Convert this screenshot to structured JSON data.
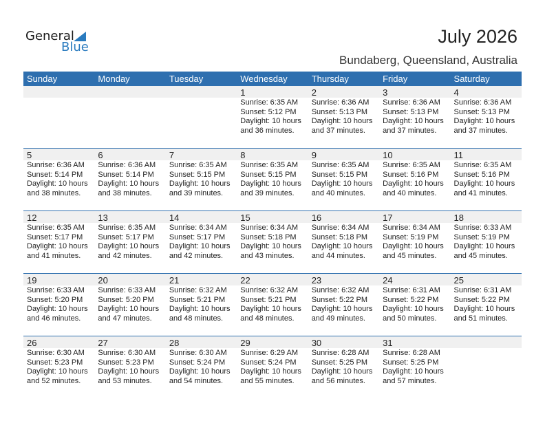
{
  "logo": {
    "text_general": "General",
    "text_blue": "Blue"
  },
  "header": {
    "title": "July 2026",
    "location": "Bundaberg, Queensland, Australia"
  },
  "colors": {
    "accent": "#2e6faf",
    "band": "#f0f0f0"
  },
  "weekdays": [
    "Sunday",
    "Monday",
    "Tuesday",
    "Wednesday",
    "Thursday",
    "Friday",
    "Saturday"
  ],
  "weeks": [
    [
      null,
      null,
      null,
      {
        "day": "1",
        "sunrise": "Sunrise: 6:35 AM",
        "sunset": "Sunset: 5:12 PM",
        "daylight": "Daylight: 10 hours",
        "minutes": "and 36 minutes."
      },
      {
        "day": "2",
        "sunrise": "Sunrise: 6:36 AM",
        "sunset": "Sunset: 5:13 PM",
        "daylight": "Daylight: 10 hours",
        "minutes": "and 37 minutes."
      },
      {
        "day": "3",
        "sunrise": "Sunrise: 6:36 AM",
        "sunset": "Sunset: 5:13 PM",
        "daylight": "Daylight: 10 hours",
        "minutes": "and 37 minutes."
      },
      {
        "day": "4",
        "sunrise": "Sunrise: 6:36 AM",
        "sunset": "Sunset: 5:13 PM",
        "daylight": "Daylight: 10 hours",
        "minutes": "and 37 minutes."
      }
    ],
    [
      {
        "day": "5",
        "sunrise": "Sunrise: 6:36 AM",
        "sunset": "Sunset: 5:14 PM",
        "daylight": "Daylight: 10 hours",
        "minutes": "and 38 minutes."
      },
      {
        "day": "6",
        "sunrise": "Sunrise: 6:36 AM",
        "sunset": "Sunset: 5:14 PM",
        "daylight": "Daylight: 10 hours",
        "minutes": "and 38 minutes."
      },
      {
        "day": "7",
        "sunrise": "Sunrise: 6:35 AM",
        "sunset": "Sunset: 5:15 PM",
        "daylight": "Daylight: 10 hours",
        "minutes": "and 39 minutes."
      },
      {
        "day": "8",
        "sunrise": "Sunrise: 6:35 AM",
        "sunset": "Sunset: 5:15 PM",
        "daylight": "Daylight: 10 hours",
        "minutes": "and 39 minutes."
      },
      {
        "day": "9",
        "sunrise": "Sunrise: 6:35 AM",
        "sunset": "Sunset: 5:15 PM",
        "daylight": "Daylight: 10 hours",
        "minutes": "and 40 minutes."
      },
      {
        "day": "10",
        "sunrise": "Sunrise: 6:35 AM",
        "sunset": "Sunset: 5:16 PM",
        "daylight": "Daylight: 10 hours",
        "minutes": "and 40 minutes."
      },
      {
        "day": "11",
        "sunrise": "Sunrise: 6:35 AM",
        "sunset": "Sunset: 5:16 PM",
        "daylight": "Daylight: 10 hours",
        "minutes": "and 41 minutes."
      }
    ],
    [
      {
        "day": "12",
        "sunrise": "Sunrise: 6:35 AM",
        "sunset": "Sunset: 5:17 PM",
        "daylight": "Daylight: 10 hours",
        "minutes": "and 41 minutes."
      },
      {
        "day": "13",
        "sunrise": "Sunrise: 6:35 AM",
        "sunset": "Sunset: 5:17 PM",
        "daylight": "Daylight: 10 hours",
        "minutes": "and 42 minutes."
      },
      {
        "day": "14",
        "sunrise": "Sunrise: 6:34 AM",
        "sunset": "Sunset: 5:17 PM",
        "daylight": "Daylight: 10 hours",
        "minutes": "and 42 minutes."
      },
      {
        "day": "15",
        "sunrise": "Sunrise: 6:34 AM",
        "sunset": "Sunset: 5:18 PM",
        "daylight": "Daylight: 10 hours",
        "minutes": "and 43 minutes."
      },
      {
        "day": "16",
        "sunrise": "Sunrise: 6:34 AM",
        "sunset": "Sunset: 5:18 PM",
        "daylight": "Daylight: 10 hours",
        "minutes": "and 44 minutes."
      },
      {
        "day": "17",
        "sunrise": "Sunrise: 6:34 AM",
        "sunset": "Sunset: 5:19 PM",
        "daylight": "Daylight: 10 hours",
        "minutes": "and 45 minutes."
      },
      {
        "day": "18",
        "sunrise": "Sunrise: 6:33 AM",
        "sunset": "Sunset: 5:19 PM",
        "daylight": "Daylight: 10 hours",
        "minutes": "and 45 minutes."
      }
    ],
    [
      {
        "day": "19",
        "sunrise": "Sunrise: 6:33 AM",
        "sunset": "Sunset: 5:20 PM",
        "daylight": "Daylight: 10 hours",
        "minutes": "and 46 minutes."
      },
      {
        "day": "20",
        "sunrise": "Sunrise: 6:33 AM",
        "sunset": "Sunset: 5:20 PM",
        "daylight": "Daylight: 10 hours",
        "minutes": "and 47 minutes."
      },
      {
        "day": "21",
        "sunrise": "Sunrise: 6:32 AM",
        "sunset": "Sunset: 5:21 PM",
        "daylight": "Daylight: 10 hours",
        "minutes": "and 48 minutes."
      },
      {
        "day": "22",
        "sunrise": "Sunrise: 6:32 AM",
        "sunset": "Sunset: 5:21 PM",
        "daylight": "Daylight: 10 hours",
        "minutes": "and 48 minutes."
      },
      {
        "day": "23",
        "sunrise": "Sunrise: 6:32 AM",
        "sunset": "Sunset: 5:22 PM",
        "daylight": "Daylight: 10 hours",
        "minutes": "and 49 minutes."
      },
      {
        "day": "24",
        "sunrise": "Sunrise: 6:31 AM",
        "sunset": "Sunset: 5:22 PM",
        "daylight": "Daylight: 10 hours",
        "minutes": "and 50 minutes."
      },
      {
        "day": "25",
        "sunrise": "Sunrise: 6:31 AM",
        "sunset": "Sunset: 5:22 PM",
        "daylight": "Daylight: 10 hours",
        "minutes": "and 51 minutes."
      }
    ],
    [
      {
        "day": "26",
        "sunrise": "Sunrise: 6:30 AM",
        "sunset": "Sunset: 5:23 PM",
        "daylight": "Daylight: 10 hours",
        "minutes": "and 52 minutes."
      },
      {
        "day": "27",
        "sunrise": "Sunrise: 6:30 AM",
        "sunset": "Sunset: 5:23 PM",
        "daylight": "Daylight: 10 hours",
        "minutes": "and 53 minutes."
      },
      {
        "day": "28",
        "sunrise": "Sunrise: 6:30 AM",
        "sunset": "Sunset: 5:24 PM",
        "daylight": "Daylight: 10 hours",
        "minutes": "and 54 minutes."
      },
      {
        "day": "29",
        "sunrise": "Sunrise: 6:29 AM",
        "sunset": "Sunset: 5:24 PM",
        "daylight": "Daylight: 10 hours",
        "minutes": "and 55 minutes."
      },
      {
        "day": "30",
        "sunrise": "Sunrise: 6:28 AM",
        "sunset": "Sunset: 5:25 PM",
        "daylight": "Daylight: 10 hours",
        "minutes": "and 56 minutes."
      },
      {
        "day": "31",
        "sunrise": "Sunrise: 6:28 AM",
        "sunset": "Sunset: 5:25 PM",
        "daylight": "Daylight: 10 hours",
        "minutes": "and 57 minutes."
      },
      null
    ]
  ]
}
